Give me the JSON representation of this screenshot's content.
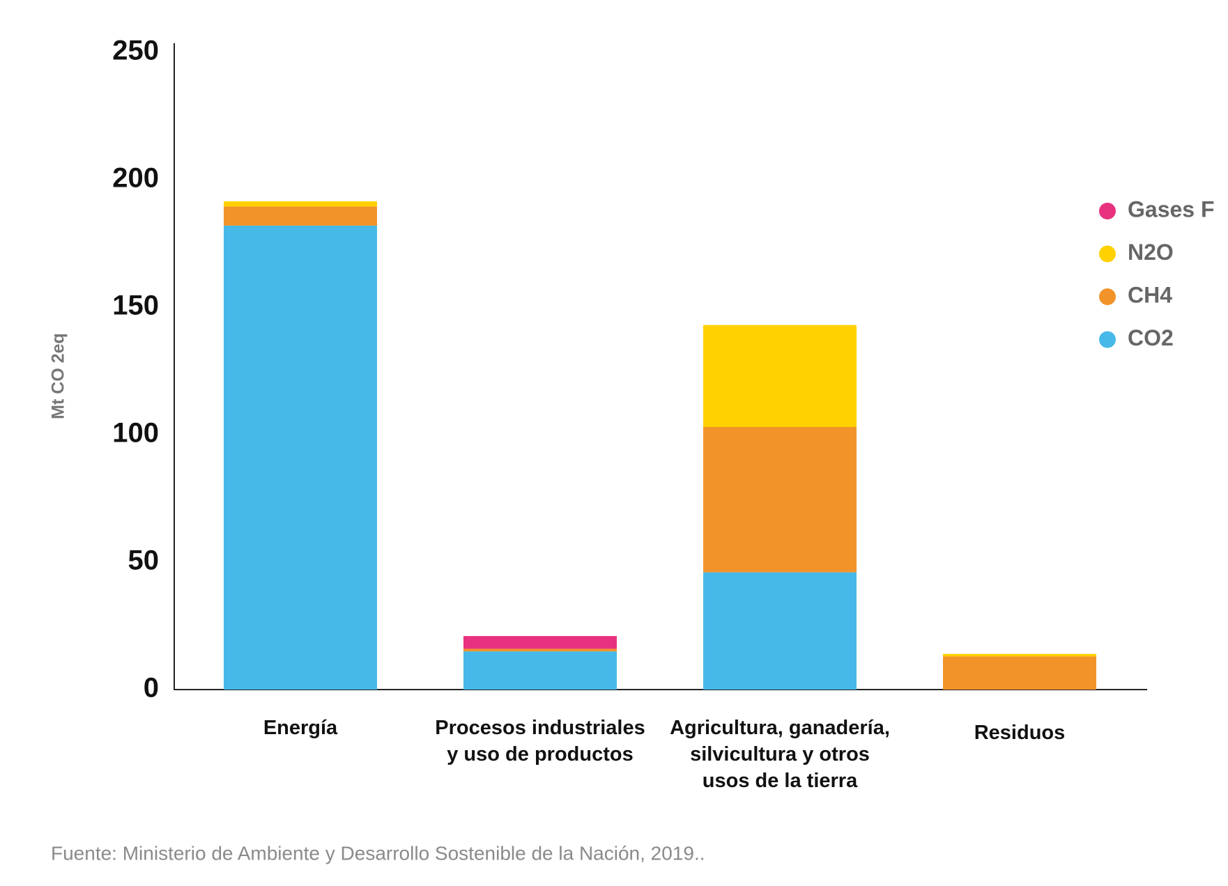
{
  "chart_data": {
    "type": "stacked_bar",
    "y_label": "Mt CO 2eq",
    "source": "Fuente: Ministerio  de Ambiente y Desarrollo Sostenible de la Nación, 2019..",
    "categories": [
      [
        "Energía"
      ],
      [
        "Procesos industriales",
        "y uso de productos"
      ],
      [
        "Agricultura, ganadería,",
        "silvicultura y otros",
        "usos de la tierra"
      ],
      [
        "Residuos"
      ]
    ],
    "series": [
      {
        "name": "CO2",
        "color": "#47b9e9",
        "values": [
          182,
          15,
          46,
          0
        ]
      },
      {
        "name": "CH4",
        "color": "#f2932a",
        "values": [
          7.5,
          1,
          57,
          13
        ]
      },
      {
        "name": "N2O",
        "color": "#ffd100",
        "values": [
          2,
          0,
          40,
          1
        ]
      },
      {
        "name": "Gases F",
        "color": "#e8327f",
        "values": [
          0,
          5,
          0,
          0
        ]
      }
    ],
    "ylim": [
      0,
      250
    ],
    "yticks": [
      0,
      50,
      100,
      150,
      200,
      250
    ],
    "grid": false,
    "legend": "right"
  }
}
